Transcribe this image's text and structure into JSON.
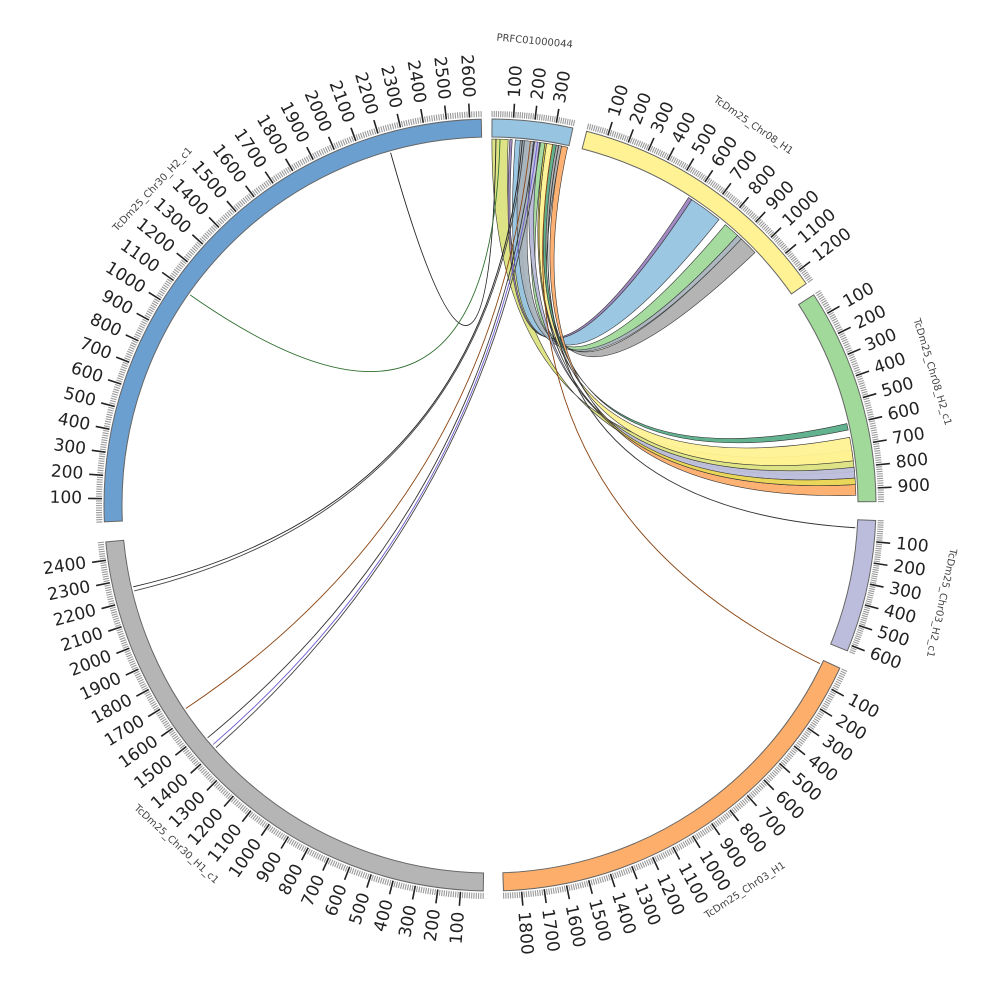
{
  "diagram": {
    "type": "circos",
    "segments": [
      {
        "id": "prfc",
        "label": "PRFC01000044",
        "color": "#97c4e0",
        "start_angle": 0.3,
        "end_angle": 12.4,
        "length": 380,
        "tick_step": 10,
        "major_step": 100,
        "labels": [
          "100",
          "200",
          "300"
        ]
      },
      {
        "id": "chr08h1",
        "label": "TcDm25_Chr08_H1",
        "color": "#fff294",
        "start_angle": 14.5,
        "end_angle": 55.0,
        "length": 1270,
        "tick_step": 10,
        "major_step": 100,
        "labels": [
          "100",
          "200",
          "300",
          "400",
          "500",
          "600",
          "700",
          "800",
          "900",
          "1000",
          "1100",
          "1200"
        ]
      },
      {
        "id": "chr08h2",
        "label": "TcDm25_Chr08_H2_c1",
        "color": "#a1d99b",
        "start_angle": 57.0,
        "end_angle": 89.5,
        "length": 960,
        "tick_step": 10,
        "major_step": 100,
        "labels": [
          "100",
          "200",
          "300",
          "400",
          "500",
          "600",
          "700",
          "800",
          "900"
        ]
      },
      {
        "id": "chr03h2",
        "label": "TcDm25_Chr03_H2_c1",
        "color": "#bcbddc",
        "start_angle": 92.3,
        "end_angle": 112.2,
        "length": 630,
        "tick_step": 10,
        "major_step": 100,
        "labels": [
          "100",
          "200",
          "300",
          "400",
          "500",
          "600"
        ]
      },
      {
        "id": "chr03h1",
        "label": "TcDm25_Chr03_H1",
        "color": "#fdae6b",
        "start_angle": 115.0,
        "end_angle": 178.0,
        "length": 1880,
        "tick_step": 10,
        "major_step": 100,
        "labels": [
          "100",
          "200",
          "300",
          "400",
          "500",
          "600",
          "700",
          "800",
          "900",
          "1000",
          "1100",
          "1200",
          "1300",
          "1400",
          "1500",
          "1600",
          "1700",
          "1800"
        ]
      },
      {
        "id": "chr30h1",
        "label": "TcDm25_Chr30_H1_c1",
        "color": "#b5b5b5",
        "start_angle": 181.0,
        "end_angle": 264.5,
        "length": 2480,
        "tick_step": 10,
        "major_step": 100,
        "labels": [
          "100",
          "200",
          "300",
          "400",
          "500",
          "600",
          "700",
          "800",
          "900",
          "1000",
          "1100",
          "1200",
          "1300",
          "1400",
          "1500",
          "1600",
          "1700",
          "1800",
          "1900",
          "2000",
          "2100",
          "2200",
          "2300",
          "2400"
        ]
      },
      {
        "id": "chr30h2",
        "label": "TcDm25_Chr30_H2_c1",
        "color": "#6b9fcf",
        "start_angle": 267.5,
        "end_angle": 358.7,
        "length": 2650,
        "tick_step": 10,
        "major_step": 100,
        "labels": [
          "100",
          "200",
          "300",
          "400",
          "500",
          "600",
          "700",
          "800",
          "900",
          "1000",
          "1100",
          "1200",
          "1300",
          "1400",
          "1500",
          "1600",
          "1700",
          "1800",
          "1900",
          "2000",
          "2100",
          "2200",
          "2300",
          "2400",
          "2500",
          "2600"
        ]
      }
    ],
    "ribbons": [
      {
        "name": "ribbon-olive",
        "color": "#dce37f",
        "a": [
          "prfc",
          0,
          80
        ],
        "b": [
          "chr08h2",
          720,
          820
        ]
      },
      {
        "name": "ribbon-lightblue",
        "color": "#97c4e0",
        "a": [
          "prfc",
          115,
          175
        ],
        "b": [
          "chr08h1",
          590,
          760
        ]
      },
      {
        "name": "ribbon-green",
        "color": "#a1d99b",
        "a": [
          "prfc",
          235,
          262
        ],
        "b": [
          "chr08h1",
          800,
          880
        ]
      },
      {
        "name": "ribbon-purple",
        "color": "#9e86c2",
        "a": [
          "prfc",
          88,
          100
        ],
        "b": [
          "chr08h1",
          575,
          595
        ]
      },
      {
        "name": "ribbon-grey",
        "color": "#b0b0b0",
        "a": [
          "prfc",
          318,
          345
        ],
        "b": [
          "chr08h1",
          905,
          1000
        ]
      },
      {
        "name": "ribbon-slate",
        "color": "#a9b4bd",
        "a": [
          "prfc",
          140,
          205
        ],
        "b": [
          "chr08h1",
          880,
          905
        ]
      },
      {
        "name": "ribbon-yellow",
        "color": "#fff294",
        "a": [
          "prfc",
          270,
          300
        ],
        "b": [
          "chr08h2",
          660,
          770
        ]
      },
      {
        "name": "ribbon-lavender",
        "color": "#bcbddc",
        "a": [
          "prfc",
          205,
          235
        ],
        "b": [
          "chr08h2",
          800,
          850
        ]
      },
      {
        "name": "ribbon-teal",
        "color": "#5aae8a",
        "a": [
          "prfc",
          300,
          318
        ],
        "b": [
          "chr08h2",
          595,
          625
        ]
      },
      {
        "name": "ribbon-orange",
        "color": "#fdae6b",
        "a": [
          "prfc",
          345,
          375
        ],
        "b": [
          "chr08h2",
          880,
          930
        ]
      },
      {
        "name": "ribbon-gold",
        "color": "#e9d44f",
        "a": [
          "prfc",
          262,
          270
        ],
        "b": [
          "chr08h2",
          850,
          880
        ]
      }
    ],
    "links": [
      {
        "name": "link-chr30h2-2200",
        "color": "#222",
        "a": [
          "prfc",
          20
        ],
        "b": [
          "chr30h2",
          2230
        ]
      },
      {
        "name": "link-chr30h2-1100",
        "color": "#2f6f2f",
        "a": [
          "prfc",
          40
        ],
        "b": [
          "chr30h2",
          1090
        ]
      },
      {
        "name": "link-chr30h1-2250a",
        "color": "#222",
        "a": [
          "prfc",
          150
        ],
        "b": [
          "chr30h1",
          2260
        ]
      },
      {
        "name": "link-chr30h1-2250b",
        "color": "#444",
        "a": [
          "prfc",
          160
        ],
        "b": [
          "chr30h1",
          2240
        ]
      },
      {
        "name": "link-chr30h1-1650",
        "color": "#8b4513",
        "a": [
          "prfc",
          190
        ],
        "b": [
          "chr30h1",
          1640
        ]
      },
      {
        "name": "link-chr30h1-1450a",
        "color": "#333",
        "a": [
          "prfc",
          210
        ],
        "b": [
          "chr30h1",
          1470
        ]
      },
      {
        "name": "link-chr30h1-1450b",
        "color": "#6a5acd",
        "a": [
          "prfc",
          225
        ],
        "b": [
          "chr30h1",
          1430
        ]
      },
      {
        "name": "link-chr30h1-1400",
        "color": "#444",
        "a": [
          "prfc",
          240
        ],
        "b": [
          "chr30h1",
          1410
        ]
      },
      {
        "name": "link-chr03h2",
        "color": "#333",
        "a": [
          "prfc",
          330
        ],
        "b": [
          "chr03h2",
          40
        ]
      },
      {
        "name": "link-chr03h1",
        "color": "#8b4513",
        "a": [
          "prfc",
          300
        ],
        "b": [
          "chr03h1",
          20
        ]
      }
    ]
  }
}
